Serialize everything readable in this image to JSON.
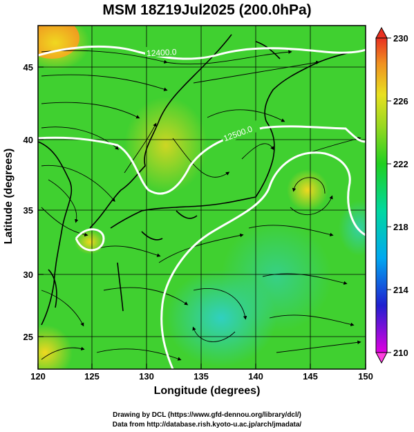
{
  "title": "MSM 18Z19Jul2025 (200.0hPa)",
  "axes": {
    "xlabel": "Longitude (degrees)",
    "ylabel": "Latitude  (degrees)",
    "x_ticks": [
      "120",
      "125",
      "130",
      "135",
      "140",
      "145",
      "150"
    ],
    "y_ticks": [
      "25",
      "30",
      "35",
      "40",
      "45"
    ],
    "xlim": [
      120,
      150
    ],
    "ylim": [
      22.5,
      47.6
    ]
  },
  "colorbar": {
    "labels": [
      "230",
      "226",
      "222",
      "218",
      "214",
      "210"
    ],
    "range": [
      210,
      230
    ]
  },
  "contour_labels": [
    "12400.0",
    "12500.0"
  ],
  "credits": {
    "line1": "Drawing by DCL (https://www.gfd-dennou.org/library/dcl/)",
    "line2": "Data from http://database.rish.kyoto-u.ac.jp/arch/jmadata/"
  },
  "colors": {
    "background_field": "#3fd61e",
    "warm_field": "#d8d820",
    "cool_field": "#28d8a8",
    "contour": "#ffffff",
    "streamline": "#000000"
  }
}
